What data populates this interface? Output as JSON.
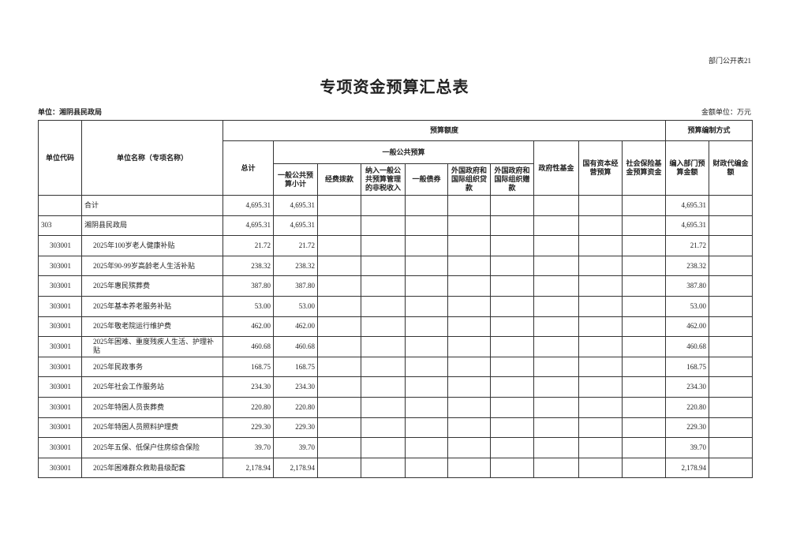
{
  "header": {
    "form_no": "部门公开表21",
    "title": "专项资金预算汇总表",
    "unit": "单位：湘阴县民政局",
    "currency": "金额单位：万元"
  },
  "table": {
    "headers": {
      "unit_code": "单位代码",
      "unit_name": "单位名称（专项名称）",
      "budget_amount": "预算额度",
      "budget_method": "预算编制方式",
      "total": "总计",
      "general_budget": "一般公共预算",
      "gov_fund": "政府性基金",
      "state_capital": "国有资本经营预算",
      "social_insurance": "社会保险基金预算资金",
      "dept_budget": "编入部门预算金额",
      "fiscal_proxy": "财政代编金额",
      "general_subtotal": "一般公共预算小计",
      "appropriation": "经费拨款",
      "non_tax": "纳入一般公共预算管理的非税收入",
      "bonds": "一般债券",
      "foreign_loans": "外国政府和国际组织贷款",
      "foreign_grants": "外国政府和国际组织赠款"
    },
    "rows": [
      {
        "name": "合计",
        "total": "4,695.31",
        "subtotal": "4,695.31",
        "dept_budget": "4,695.31"
      },
      {
        "code": "303",
        "name": "湘阴县民政局",
        "total": "4,695.31",
        "subtotal": "4,695.31",
        "dept_budget": "4,695.31"
      },
      {
        "code": "303001",
        "name": "2025年100岁老人健康补贴",
        "total": "21.72",
        "subtotal": "21.72",
        "dept_budget": "21.72"
      },
      {
        "code": "303001",
        "name": "2025年90-99岁高龄老人生活补贴",
        "total": "238.32",
        "subtotal": "238.32",
        "dept_budget": "238.32"
      },
      {
        "code": "303001",
        "name": "2025年惠民殡葬费",
        "total": "387.80",
        "subtotal": "387.80",
        "dept_budget": "387.80"
      },
      {
        "code": "303001",
        "name": "2025年基本养老服务补贴",
        "total": "53.00",
        "subtotal": "53.00",
        "dept_budget": "53.00"
      },
      {
        "code": "303001",
        "name": "2025年敬老院运行维护费",
        "total": "462.00",
        "subtotal": "462.00",
        "dept_budget": "462.00"
      },
      {
        "code": "303001",
        "name": "2025年困难、重度残疾人生活、护理补贴",
        "total": "460.68",
        "subtotal": "460.68",
        "dept_budget": "460.68"
      },
      {
        "code": "303001",
        "name": "2025年民政事务",
        "total": "168.75",
        "subtotal": "168.75",
        "dept_budget": "168.75"
      },
      {
        "code": "303001",
        "name": "2025年社会工作服务站",
        "total": "234.30",
        "subtotal": "234.30",
        "dept_budget": "234.30"
      },
      {
        "code": "303001",
        "name": "2025年特困人员丧葬费",
        "total": "220.80",
        "subtotal": "220.80",
        "dept_budget": "220.80"
      },
      {
        "code": "303001",
        "name": "2025年特困人员照料护理费",
        "total": "229.30",
        "subtotal": "229.30",
        "dept_budget": "229.30"
      },
      {
        "code": "303001",
        "name": "2025年五保、低保户住房综合保险",
        "total": "39.70",
        "subtotal": "39.70",
        "dept_budget": "39.70"
      },
      {
        "code": "303001",
        "name": "2025年困难群众救助县级配套",
        "total": "2,178.94",
        "subtotal": "2,178.94",
        "dept_budget": "2,178.94"
      }
    ]
  }
}
